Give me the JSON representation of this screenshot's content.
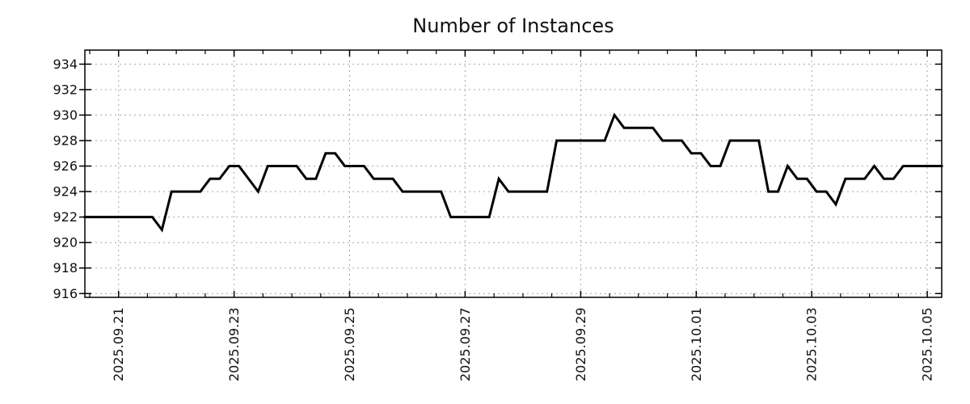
{
  "page": {
    "background": "#ffffff"
  },
  "chart_data": {
    "type": "line",
    "title": "Number of Instances",
    "xlabel": "",
    "ylabel": "",
    "legend": "none",
    "grid": true,
    "x_axis": {
      "tick_labels": [
        "2025.09.21",
        "2025.09.23",
        "2025.09.25",
        "2025.09.27",
        "2025.09.29",
        "2025.10.01",
        "2025.10.03",
        "2025.10.05"
      ],
      "tick_hours_from_start": [
        14,
        62,
        110,
        158,
        206,
        254,
        302,
        350
      ],
      "minor_tick_interval_hours": 12,
      "minor_tick_phase_hours": 2,
      "range_hours": [
        0,
        356
      ]
    },
    "y_axis": {
      "tick_labels": [
        "916",
        "918",
        "920",
        "922",
        "924",
        "926",
        "928",
        "930",
        "932",
        "934"
      ],
      "tick_values": [
        916,
        918,
        920,
        922,
        924,
        926,
        928,
        930,
        932,
        934
      ],
      "range": [
        915.7,
        935.1
      ]
    },
    "series": [
      {
        "name": "Number of Instances",
        "color": "#000000",
        "start_time": "2025-09-20 10:00",
        "step_hours": 4,
        "values": [
          922,
          922,
          922,
          922,
          922,
          922,
          922,
          922,
          921,
          924,
          924,
          924,
          924,
          925,
          925,
          926,
          926,
          925,
          924,
          926,
          926,
          926,
          926,
          925,
          925,
          927,
          927,
          926,
          926,
          926,
          925,
          925,
          925,
          924,
          924,
          924,
          924,
          924,
          922,
          922,
          922,
          922,
          922,
          925,
          924,
          924,
          924,
          924,
          924,
          928,
          928,
          928,
          928,
          928,
          928,
          930,
          929,
          929,
          929,
          929,
          928,
          928,
          928,
          927,
          927,
          926,
          926,
          928,
          928,
          928,
          928,
          924,
          924,
          926,
          925,
          925,
          924,
          924,
          923,
          925,
          925,
          925,
          926,
          925,
          925,
          926,
          926,
          926,
          926,
          926
        ]
      }
    ]
  },
  "style": {
    "background": "#ffffff",
    "text_color": "#111111",
    "axis_color": "#000000",
    "grid_color": "#a6a6a6",
    "line_color": "#000000",
    "line_width": 3
  }
}
